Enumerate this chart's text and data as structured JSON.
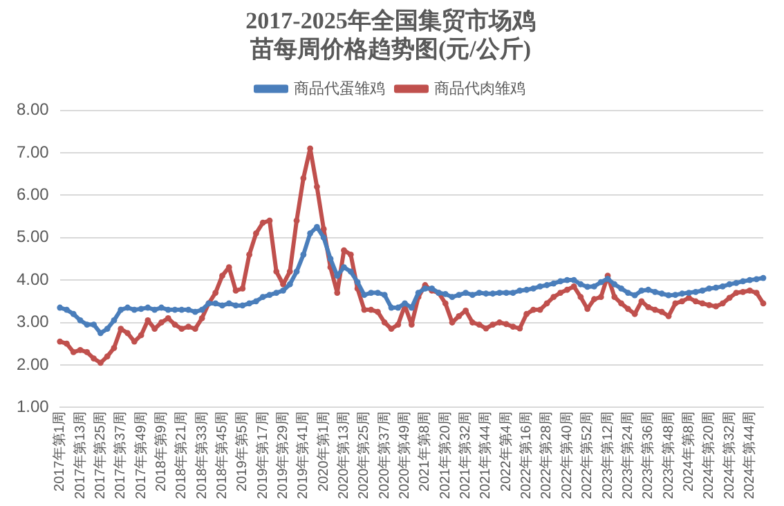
{
  "chart_data": {
    "type": "line",
    "title": "2017-2025年全国集贸市场鸡苗每周价格趋势图(元/公斤)",
    "categories": [
      "2017年第1周",
      null,
      null,
      "2017年第13周",
      null,
      null,
      "2017年第25周",
      null,
      null,
      "2017年第37周",
      null,
      null,
      "2017年第49周",
      null,
      null,
      "2018年第9周",
      null,
      null,
      "2018年第21周",
      null,
      null,
      "2018年第33周",
      null,
      null,
      "2018年第45周",
      null,
      null,
      "2019年第5周",
      null,
      null,
      "2019年第17周",
      null,
      null,
      "2019年第29周",
      null,
      null,
      "2019年第41周",
      null,
      null,
      "2020年第1周",
      null,
      null,
      "2020年第13周",
      null,
      null,
      "2020年第25周",
      null,
      null,
      "2020年第37周",
      null,
      null,
      "2020年第49周",
      null,
      null,
      "2021年第8周",
      null,
      null,
      "2021年第20周",
      null,
      null,
      "2021年第32周",
      null,
      null,
      "2021年第44周",
      null,
      null,
      "2022年第4周",
      null,
      null,
      "2022年第16周",
      null,
      null,
      "2022年第28周",
      null,
      null,
      "2022年第40周",
      null,
      null,
      "2022年第52周",
      null,
      null,
      "2023年第12周",
      null,
      null,
      "2023年第24周",
      null,
      null,
      "2023年第36周",
      null,
      null,
      "2023年第48周",
      null,
      null,
      "2024年第8周",
      null,
      null,
      "2024年第20周",
      null,
      null,
      "2024年第32周",
      null,
      null,
      "2024年第44周",
      null,
      null
    ],
    "series": [
      {
        "name": "商品代蛋雏鸡",
        "color": "#4a7ebb",
        "values": [
          3.35,
          3.3,
          3.2,
          3.05,
          2.95,
          2.95,
          2.75,
          2.85,
          3.05,
          3.3,
          3.35,
          3.3,
          3.32,
          3.35,
          3.3,
          3.35,
          3.3,
          3.3,
          3.3,
          3.3,
          3.25,
          3.3,
          3.45,
          3.45,
          3.4,
          3.45,
          3.4,
          3.4,
          3.45,
          3.5,
          3.6,
          3.65,
          3.7,
          3.75,
          3.9,
          4.2,
          4.6,
          5.1,
          5.25,
          5.0,
          4.5,
          4.1,
          4.3,
          4.2,
          3.95,
          3.65,
          3.7,
          3.7,
          3.65,
          3.35,
          3.35,
          3.45,
          3.35,
          3.7,
          3.8,
          3.8,
          3.7,
          3.67,
          3.6,
          3.65,
          3.7,
          3.65,
          3.7,
          3.68,
          3.68,
          3.7,
          3.7,
          3.7,
          3.75,
          3.77,
          3.8,
          3.85,
          3.88,
          3.92,
          3.97,
          4.0,
          4.0,
          3.9,
          3.84,
          3.85,
          3.95,
          4.03,
          3.9,
          3.8,
          3.7,
          3.64,
          3.75,
          3.77,
          3.72,
          3.68,
          3.64,
          3.65,
          3.68,
          3.7,
          3.72,
          3.75,
          3.8,
          3.82,
          3.85,
          3.9,
          3.93,
          3.97,
          4.0,
          4.02,
          4.05
        ]
      },
      {
        "name": "商品代肉雏鸡",
        "color": "#c0504d",
        "values": [
          2.55,
          2.5,
          2.3,
          2.35,
          2.3,
          2.15,
          2.05,
          2.2,
          2.4,
          2.85,
          2.75,
          2.55,
          2.7,
          3.05,
          2.85,
          3.0,
          3.1,
          2.95,
          2.85,
          2.9,
          2.85,
          3.1,
          3.45,
          3.7,
          4.1,
          4.3,
          3.75,
          3.8,
          4.6,
          5.1,
          5.35,
          5.4,
          4.2,
          3.9,
          4.2,
          5.4,
          6.4,
          7.1,
          6.2,
          5.2,
          4.3,
          3.7,
          4.7,
          4.6,
          3.8,
          3.3,
          3.3,
          3.25,
          3.0,
          2.85,
          2.95,
          3.4,
          2.95,
          3.6,
          3.88,
          3.75,
          3.7,
          3.45,
          3.0,
          3.15,
          3.28,
          3.0,
          2.95,
          2.86,
          2.95,
          3.0,
          2.96,
          2.9,
          2.86,
          3.2,
          3.3,
          3.3,
          3.45,
          3.6,
          3.7,
          3.77,
          3.85,
          3.6,
          3.32,
          3.55,
          3.6,
          4.1,
          3.6,
          3.45,
          3.32,
          3.2,
          3.5,
          3.36,
          3.3,
          3.25,
          3.15,
          3.45,
          3.5,
          3.58,
          3.5,
          3.45,
          3.41,
          3.38,
          3.45,
          3.58,
          3.7,
          3.72,
          3.75,
          3.7,
          3.45
        ]
      }
    ],
    "ylim": [
      1,
      8
    ],
    "yticks": [
      {
        "value": 1,
        "label": "1.00"
      },
      {
        "value": 2,
        "label": "2.00"
      },
      {
        "value": 3,
        "label": "3.00"
      },
      {
        "value": 4,
        "label": "4.00"
      },
      {
        "value": 5,
        "label": "5.00"
      },
      {
        "value": 6,
        "label": "6.00"
      },
      {
        "value": 7,
        "label": "7.00"
      },
      {
        "value": 8,
        "label": "8.00"
      }
    ],
    "grid": "y",
    "legend": "top",
    "marker": "circle",
    "line_style": "solid"
  }
}
